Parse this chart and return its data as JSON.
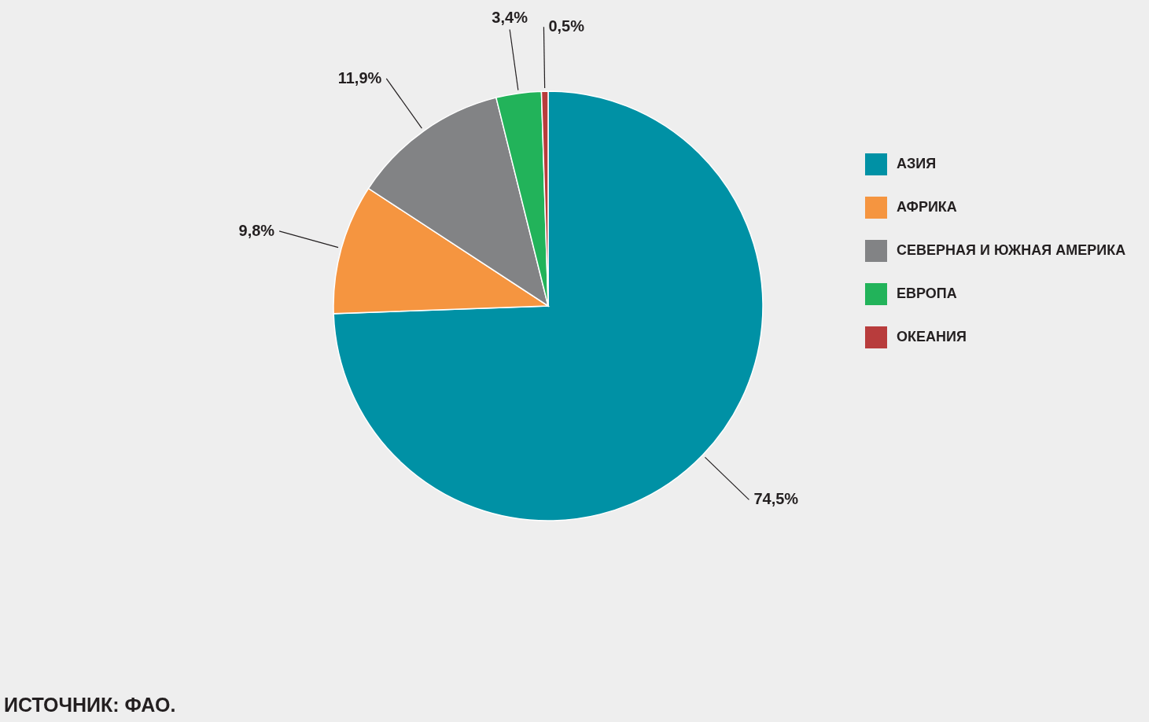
{
  "chart_data": {
    "type": "pie",
    "categories": [
      "АЗИЯ",
      "АФРИКА",
      "СЕВЕРНАЯ И ЮЖНАЯ АМЕРИКА",
      "ЕВРОПА",
      "ОКЕАНИЯ"
    ],
    "values": [
      74.5,
      9.8,
      11.9,
      3.4,
      0.5
    ],
    "colors": [
      "#0091a5",
      "#f59540",
      "#828385",
      "#22b35a",
      "#b83c3c"
    ],
    "value_labels": [
      "74,5%",
      "9,8%",
      "11,9%",
      "3,4%",
      "0,5%"
    ],
    "legend": "right",
    "annotations": [
      "ИСТОЧНИК: ФАО."
    ]
  }
}
